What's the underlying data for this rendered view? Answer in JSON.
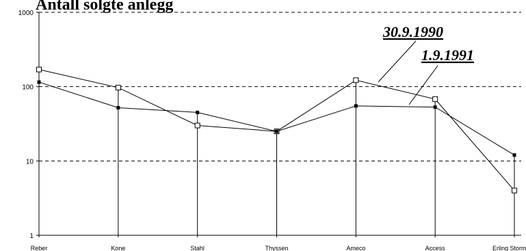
{
  "chart_data": {
    "type": "line",
    "title": "Antall solgte anlegg",
    "y_scale": "log",
    "ylim": [
      1,
      1000
    ],
    "yticks": [
      "1",
      "10",
      "100",
      "1000"
    ],
    "grid": "dashed horizontal at 10, 100, 1000",
    "categories": [
      "Reber",
      "Kone",
      "Stahl",
      "Thyssen",
      "Ameco",
      "Access",
      "Erling Storm"
    ],
    "series": [
      {
        "name": "30.9.1990",
        "marker": "open-square",
        "values": [
          170,
          97,
          30,
          25,
          122,
          68,
          4
        ]
      },
      {
        "name": "1.9.1991",
        "marker": "filled-square",
        "values": [
          115,
          52,
          45,
          25,
          55,
          53,
          12
        ]
      }
    ]
  }
}
